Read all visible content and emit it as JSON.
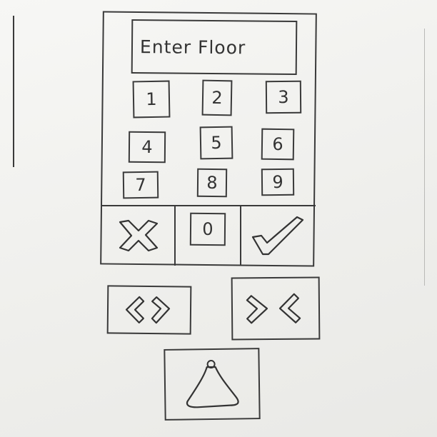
{
  "display": {
    "placeholder": "Enter Floor"
  },
  "keypad": {
    "keys": [
      "1",
      "2",
      "3",
      "4",
      "5",
      "6",
      "7",
      "8",
      "9",
      "0"
    ]
  },
  "actions": {
    "cancel_icon": "x-icon",
    "confirm_icon": "check-icon",
    "door_open_icon": "door-open-arrows-icon",
    "door_close_icon": "door-close-arrows-icon",
    "alarm_icon": "bell-icon"
  }
}
